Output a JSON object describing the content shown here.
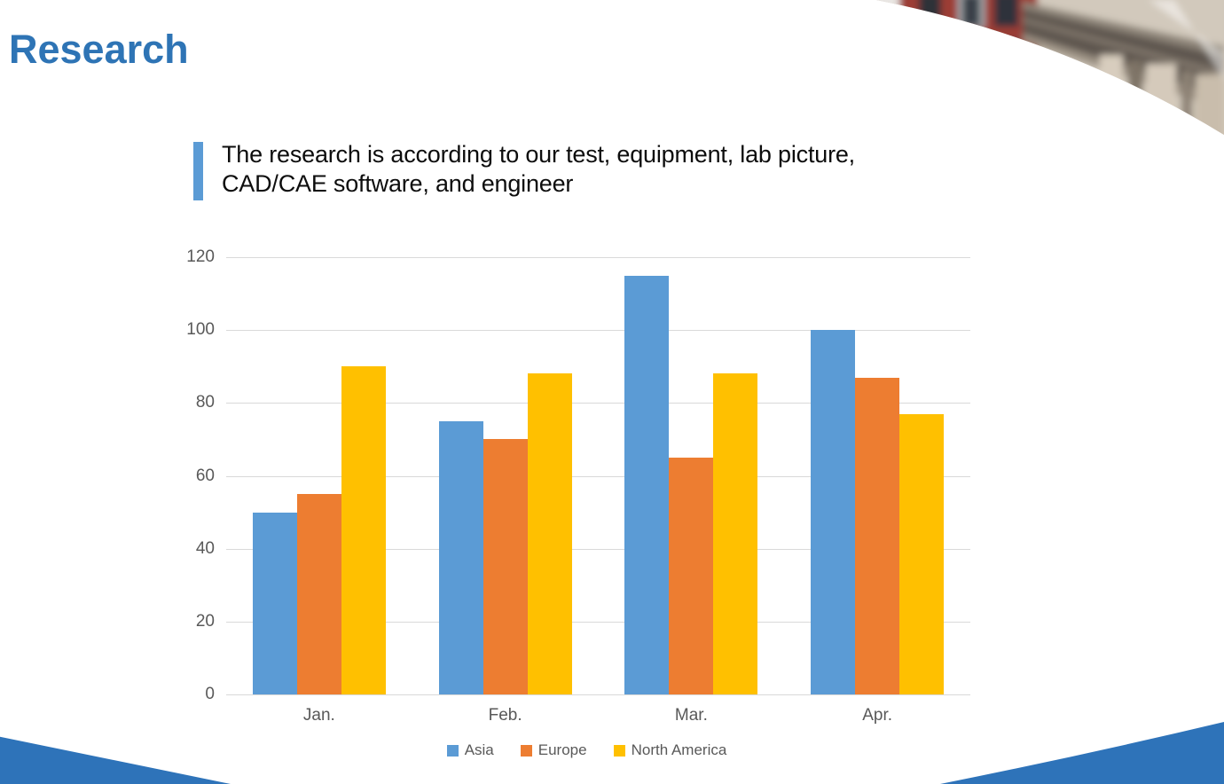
{
  "slide": {
    "title": "Research",
    "quote_text": "The research is according to our test, equipment, lab picture, CAD/CAE software, and engineer"
  },
  "chart_data": {
    "type": "bar",
    "categories": [
      "Jan.",
      "Feb.",
      "Mar.",
      "Apr."
    ],
    "series": [
      {
        "name": "Asia",
        "color": "#5B9BD5",
        "values": [
          50,
          75,
          115,
          100
        ]
      },
      {
        "name": "Europe",
        "color": "#ED7D31",
        "values": [
          55,
          70,
          65,
          87
        ]
      },
      {
        "name": "North America",
        "color": "#FFC000",
        "values": [
          90,
          88,
          88,
          77
        ]
      }
    ],
    "ylim": [
      0,
      120
    ],
    "yticks": [
      0,
      20,
      40,
      60,
      80,
      100,
      120
    ],
    "grid": true,
    "legend_position": "bottom"
  },
  "colors": {
    "title": "#2E74B5",
    "accent_bar": "#5B9BD5",
    "axis_text": "#595959",
    "gridline": "#D9D9D9",
    "wave": "#2E73B9"
  }
}
